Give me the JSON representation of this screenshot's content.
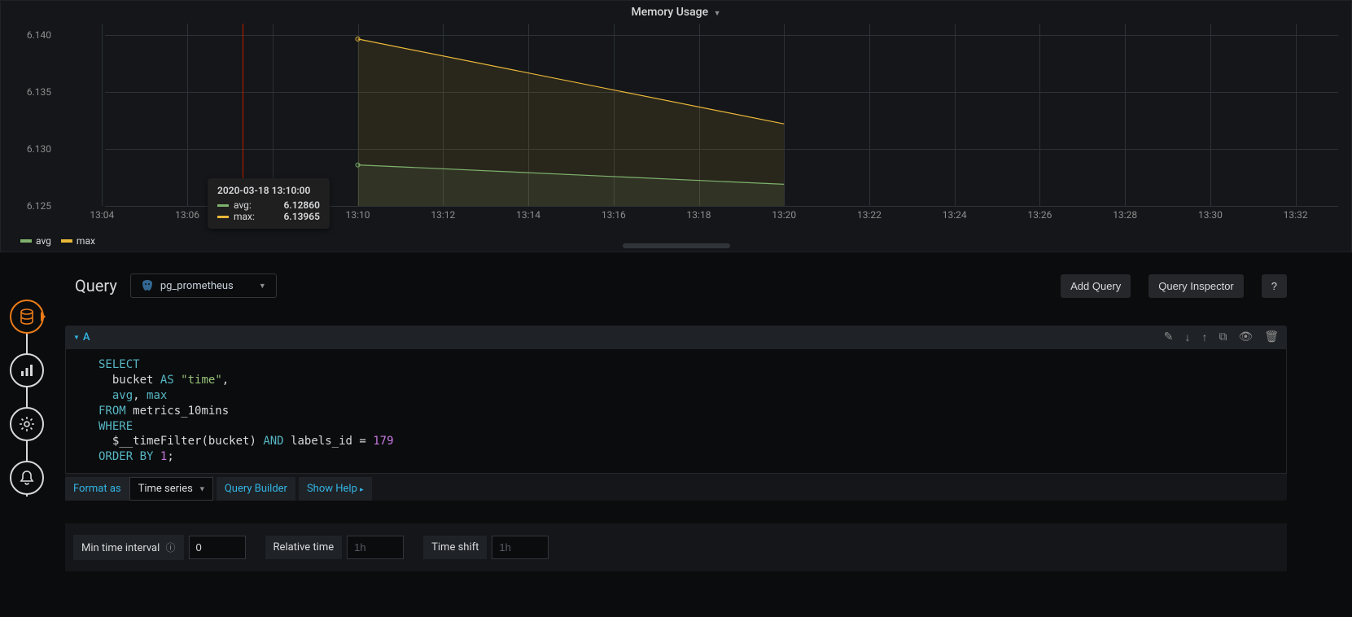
{
  "panel": {
    "title": "Memory Usage"
  },
  "chart": {
    "type": "line",
    "background_color": "#141619",
    "grid_color": "#2c3235",
    "axis_label_color": "#8e8e8e",
    "axis_fontsize": 12,
    "x": {
      "min_min": 183,
      "max_min": 213,
      "ticks": [
        "13:04",
        "13:06",
        "13:08",
        "13:10",
        "13:12",
        "13:14",
        "13:16",
        "13:18",
        "13:20",
        "13:22",
        "13:24",
        "13:26",
        "13:28",
        "13:30",
        "13:32"
      ],
      "tick_minutes": [
        184,
        186,
        188,
        190,
        192,
        194,
        196,
        198,
        200,
        202,
        204,
        206,
        208,
        210,
        212
      ]
    },
    "y": {
      "min": 6.125,
      "max": 6.141,
      "ticks": [
        "6.125",
        "6.130",
        "6.135",
        "6.140"
      ],
      "tick_values": [
        6.125,
        6.13,
        6.135,
        6.14
      ]
    },
    "cursor_x_min": 187.3,
    "cursor_color": "#bf1b00",
    "series": [
      {
        "name": "avg",
        "color": "#7eb26d",
        "line_width": 1.2,
        "fill_opacity": 0.1,
        "points": [
          {
            "x_min": 190,
            "y": 6.1286
          },
          {
            "x_min": 200,
            "y": 6.1269
          }
        ]
      },
      {
        "name": "max",
        "color": "#eab839",
        "line_width": 1.2,
        "fill_opacity": 0.1,
        "points": [
          {
            "x_min": 190,
            "y": 6.13965
          },
          {
            "x_min": 200,
            "y": 6.1322
          }
        ]
      }
    ],
    "tooltip": {
      "time": "2020-03-18 13:10:00",
      "rows": [
        {
          "label": "avg:",
          "value": "6.12860",
          "color": "#7eb26d"
        },
        {
          "label": "max:",
          "value": "6.13965",
          "color": "#eab839"
        }
      ]
    }
  },
  "legend": {
    "items": [
      {
        "label": "avg",
        "color": "#7eb26d"
      },
      {
        "label": "max",
        "color": "#eab839"
      }
    ]
  },
  "side_tabs": [
    {
      "name": "queries",
      "active": true,
      "icon": "database"
    },
    {
      "name": "visualization",
      "active": false,
      "icon": "chart"
    },
    {
      "name": "general",
      "active": false,
      "icon": "cog"
    },
    {
      "name": "alert",
      "active": false,
      "icon": "bell"
    }
  ],
  "query_header": {
    "title": "Query",
    "datasource": "pg_prometheus",
    "add_query": "Add Query",
    "inspector": "Query Inspector",
    "help": "?"
  },
  "query_row": {
    "letter": "A",
    "sql_tokens": [
      {
        "t": "kw",
        "v": "SELECT"
      },
      {
        "t": "nl"
      },
      {
        "t": "sp",
        "v": "  "
      },
      {
        "t": "ident",
        "v": "bucket"
      },
      {
        "t": "sp",
        "v": " "
      },
      {
        "t": "kw",
        "v": "AS"
      },
      {
        "t": "sp",
        "v": " "
      },
      {
        "t": "str",
        "v": "\"time\""
      },
      {
        "t": "ident",
        "v": ","
      },
      {
        "t": "nl"
      },
      {
        "t": "sp",
        "v": "  "
      },
      {
        "t": "kw",
        "v": "avg"
      },
      {
        "t": "ident",
        "v": ", "
      },
      {
        "t": "kw",
        "v": "max"
      },
      {
        "t": "nl"
      },
      {
        "t": "kw",
        "v": "FROM"
      },
      {
        "t": "sp",
        "v": " "
      },
      {
        "t": "ident",
        "v": "metrics_10mins"
      },
      {
        "t": "nl"
      },
      {
        "t": "kw",
        "v": "WHERE"
      },
      {
        "t": "nl"
      },
      {
        "t": "sp",
        "v": "  "
      },
      {
        "t": "ident",
        "v": "$__timeFilter"
      },
      {
        "t": "ident",
        "v": "("
      },
      {
        "t": "ident",
        "v": "bucket"
      },
      {
        "t": "ident",
        "v": ")"
      },
      {
        "t": "sp",
        "v": " "
      },
      {
        "t": "kw",
        "v": "AND"
      },
      {
        "t": "sp",
        "v": " "
      },
      {
        "t": "ident",
        "v": "labels_id = "
      },
      {
        "t": "num",
        "v": "179"
      },
      {
        "t": "nl"
      },
      {
        "t": "kw",
        "v": "ORDER BY"
      },
      {
        "t": "sp",
        "v": " "
      },
      {
        "t": "num",
        "v": "1"
      },
      {
        "t": "ident",
        "v": ";"
      }
    ]
  },
  "format": {
    "label": "Format as",
    "value": "Time series",
    "builder": "Query Builder",
    "help": "Show Help"
  },
  "options": {
    "min_interval_label": "Min time interval",
    "min_interval_value": "0",
    "relative_label": "Relative time",
    "relative_placeholder": "1h",
    "shift_label": "Time shift",
    "shift_placeholder": "1h"
  }
}
